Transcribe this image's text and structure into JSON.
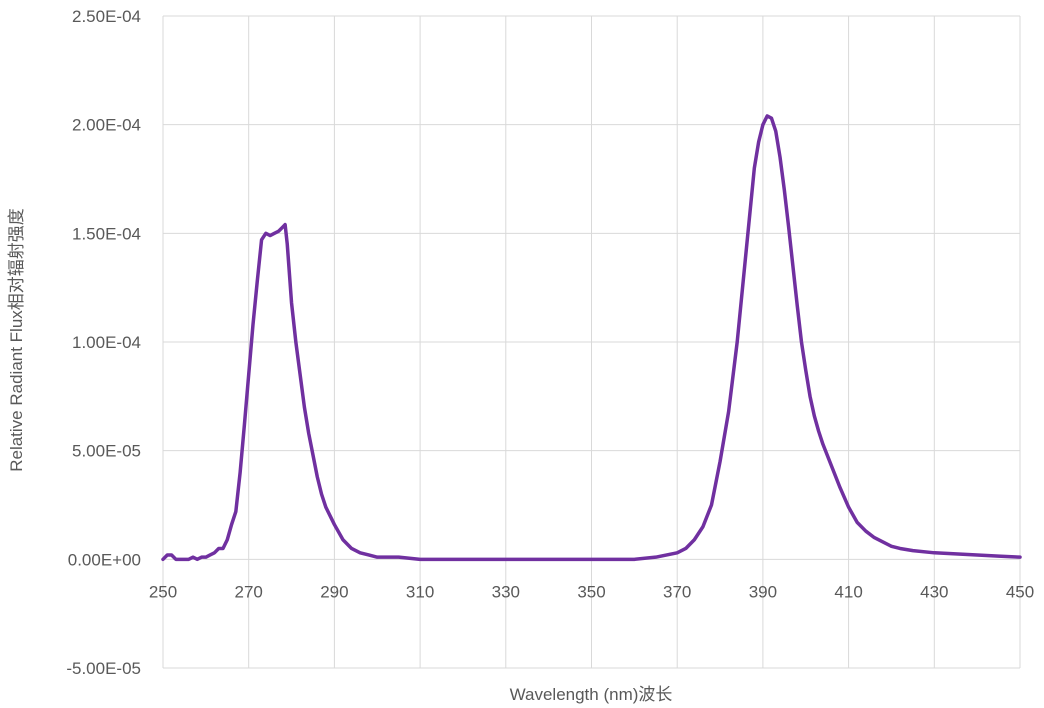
{
  "chart_data": {
    "type": "line",
    "title": "",
    "xlabel": "Wavelength (nm)波长",
    "ylabel": "Relative Radiant Flux相对辐射强度",
    "xlim": [
      250,
      450
    ],
    "ylim": [
      -5e-05,
      0.00025
    ],
    "x_ticks": [
      250,
      270,
      290,
      310,
      330,
      350,
      370,
      390,
      410,
      430,
      450
    ],
    "x_tick_labels": [
      "250",
      "270",
      "290",
      "310",
      "330",
      "350",
      "370",
      "390",
      "410",
      "430",
      "450"
    ],
    "y_ticks": [
      -5e-05,
      0,
      5e-05,
      0.0001,
      0.00015,
      0.0002,
      0.00025
    ],
    "y_tick_labels": [
      "-5.00E-05",
      "0.00E+00",
      "5.00E-05",
      "1.00E-04",
      "1.50E-04",
      "2.00E-04",
      "2.50E-04"
    ],
    "grid": true,
    "legend": "none",
    "colors": {
      "series": "#7030a0",
      "grid": "#d9d9d9",
      "text": "#595959"
    },
    "series": [
      {
        "x": [
          250,
          251,
          252,
          253,
          254,
          255,
          256,
          257,
          258,
          259,
          260,
          261,
          262,
          263,
          264,
          265,
          266,
          267,
          268,
          269,
          270,
          271,
          272,
          273,
          274,
          275,
          276,
          277,
          278,
          278.5,
          279,
          280,
          281,
          282,
          283,
          284,
          285,
          286,
          287,
          288,
          290,
          292,
          294,
          296,
          298,
          300,
          305,
          310,
          320,
          330,
          340,
          350,
          360,
          365,
          370,
          372,
          374,
          376,
          378,
          380,
          382,
          384,
          386,
          387,
          388,
          389,
          390,
          391,
          392,
          393,
          394,
          395,
          396,
          397,
          398,
          399,
          400,
          401,
          402,
          403,
          404,
          405,
          406,
          408,
          410,
          412,
          414,
          416,
          418,
          420,
          422,
          425,
          430,
          435,
          440,
          445,
          450
        ],
        "y": [
          0,
          2e-06,
          2e-06,
          0,
          0,
          0,
          0,
          1e-06,
          0,
          1e-06,
          1e-06,
          2e-06,
          3e-06,
          5e-06,
          5e-06,
          9e-06,
          1.6e-05,
          2.2e-05,
          4e-05,
          6.2e-05,
          8.5e-05,
          0.000108,
          0.000128,
          0.000147,
          0.00015,
          0.000149,
          0.00015,
          0.000151,
          0.000153,
          0.000154,
          0.000145,
          0.000118,
          0.0001,
          8.5e-05,
          7e-05,
          5.8e-05,
          4.8e-05,
          3.8e-05,
          3e-05,
          2.4e-05,
          1.6e-05,
          9e-06,
          5e-06,
          3e-06,
          2e-06,
          1e-06,
          1e-06,
          0,
          0,
          0,
          0,
          0,
          0,
          1e-06,
          3e-06,
          5e-06,
          9e-06,
          1.5e-05,
          2.5e-05,
          4.5e-05,
          6.8e-05,
          0.0001,
          0.00014,
          0.00016,
          0.00018,
          0.000192,
          0.0002,
          0.000204,
          0.000203,
          0.000197,
          0.000185,
          0.00017,
          0.000153,
          0.000135,
          0.000117,
          0.0001,
          8.7e-05,
          7.5e-05,
          6.6e-05,
          5.9e-05,
          5.3e-05,
          4.8e-05,
          4.3e-05,
          3.3e-05,
          2.4e-05,
          1.7e-05,
          1.3e-05,
          1e-05,
          8e-06,
          6e-06,
          5e-06,
          4e-06,
          3e-06,
          2.5e-06,
          2e-06,
          1.5e-06,
          1e-06
        ]
      }
    ]
  }
}
